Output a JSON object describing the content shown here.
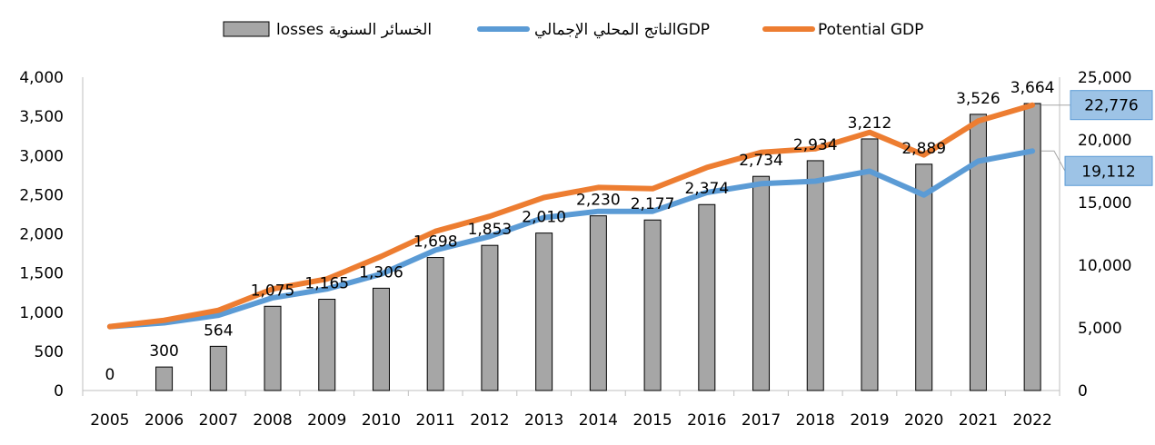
{
  "chart_data": {
    "type": "bar",
    "categories": [
      "2005",
      "2006",
      "2007",
      "2008",
      "2009",
      "2010",
      "2011",
      "2012",
      "2013",
      "2014",
      "2015",
      "2016",
      "2017",
      "2018",
      "2019",
      "2020",
      "2021",
      "2022"
    ],
    "series": [
      {
        "name": "losses الخسائر السنوية",
        "type": "bar",
        "axis": "left",
        "color": "#a6a6a6",
        "values": [
          0,
          300,
          564,
          1075,
          1165,
          1306,
          1698,
          1853,
          2010,
          2230,
          2177,
          2374,
          2734,
          2934,
          3212,
          2889,
          3526,
          3664
        ]
      },
      {
        "name": "الناتج المحلي الإجماليGDP",
        "type": "line",
        "axis": "right",
        "color": "#5b9bd5",
        "values": [
          5100,
          5400,
          6000,
          7400,
          8100,
          9300,
          11200,
          12300,
          13800,
          14300,
          14300,
          15800,
          16500,
          16700,
          17500,
          15600,
          18300,
          19112
        ]
      },
      {
        "name": "Potential GDP",
        "type": "line",
        "axis": "right",
        "color": "#ed7d31",
        "values": [
          5100,
          5600,
          6400,
          8100,
          8900,
          10700,
          12700,
          13900,
          15400,
          16200,
          16100,
          17800,
          19000,
          19300,
          20600,
          18800,
          21500,
          22776
        ]
      }
    ],
    "data_labels": [
      "0",
      "300",
      "564",
      "1,075",
      "1,165",
      "1,306",
      "1,698",
      "1,853",
      "2,010",
      "2,230",
      "2,177",
      "2,374",
      "2,734",
      "2,934",
      "3,212",
      "2,889",
      "3,526",
      "3,664"
    ],
    "callouts": [
      "22,776",
      "19,112"
    ],
    "left_axis": {
      "ylim": [
        0,
        4000
      ],
      "ticks": [
        "0",
        "500",
        "1,000",
        "1,500",
        "2,000",
        "2,500",
        "3,000",
        "3,500",
        "4,000"
      ]
    },
    "right_axis": {
      "ylim": [
        0,
        25000
      ],
      "ticks": [
        "0",
        "5,000",
        "10,000",
        "15,000",
        "20,000",
        "25,000"
      ]
    },
    "legend_position": "top",
    "grid": false,
    "title": "",
    "xlabel": "",
    "ylabel": ""
  }
}
